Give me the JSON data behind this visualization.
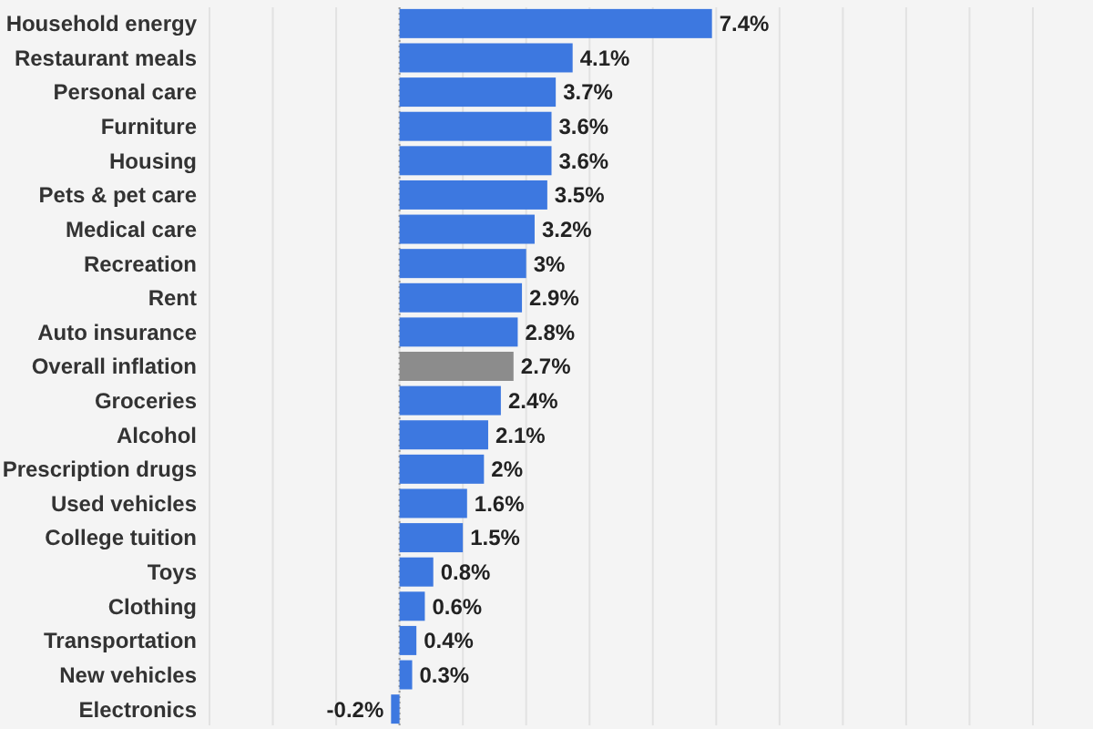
{
  "chart_data": {
    "type": "bar",
    "orientation": "horizontal",
    "categories": [
      "Household energy",
      "Restaurant meals",
      "Personal care",
      "Furniture",
      "Housing",
      "Pets & pet care",
      "Medical care",
      "Recreation",
      "Rent",
      "Auto insurance",
      "Overall inflation",
      "Groceries",
      "Alcohol",
      "Prescription drugs",
      "Used vehicles",
      "College tuition",
      "Toys",
      "Clothing",
      "Transportation",
      "New vehicles",
      "Electronics"
    ],
    "values": [
      7.4,
      4.1,
      3.7,
      3.6,
      3.6,
      3.5,
      3.2,
      3,
      2.9,
      2.8,
      2.7,
      2.4,
      2.1,
      2,
      1.6,
      1.5,
      0.8,
      0.6,
      0.4,
      0.3,
      -0.2
    ],
    "colors": [
      "#3d78e0",
      "#3d78e0",
      "#3d78e0",
      "#3d78e0",
      "#3d78e0",
      "#3d78e0",
      "#3d78e0",
      "#3d78e0",
      "#3d78e0",
      "#3d78e0",
      "#8c8c8c",
      "#3d78e0",
      "#3d78e0",
      "#3d78e0",
      "#3d78e0",
      "#3d78e0",
      "#3d78e0",
      "#3d78e0",
      "#3d78e0",
      "#3d78e0",
      "#3d78e0"
    ],
    "value_labels": [
      "7.4%",
      "4.1%",
      "3.7%",
      "3.6%",
      "3.6%",
      "3.5%",
      "3.2%",
      "3%",
      "2.9%",
      "2.8%",
      "2.7%",
      "2.4%",
      "2.1%",
      "2%",
      "1.6%",
      "1.5%",
      "0.8%",
      "0.6%",
      "0.4%",
      "0.3%",
      "-0.2%"
    ],
    "xlim": [
      -4.5,
      15
    ],
    "xticks": [
      {
        "value": -4.5,
        "label": null
      },
      {
        "value": -3,
        "label": null
      },
      {
        "value": -1.5,
        "label": null
      },
      {
        "value": 0,
        "label": null
      },
      {
        "value": 1.5,
        "label": null
      },
      {
        "value": 3,
        "label": null
      },
      {
        "value": 4.5,
        "label": null
      },
      {
        "value": 6,
        "label": null
      },
      {
        "value": 7.5,
        "label": null
      },
      {
        "value": 9,
        "label": null
      },
      {
        "value": 10.5,
        "label": null
      },
      {
        "value": 12,
        "label": null
      },
      {
        "value": 13.5,
        "label": null
      },
      {
        "value": 15,
        "label": null
      }
    ],
    "ref_lines": [
      {
        "axis": "x",
        "value": 0,
        "color": "#999999",
        "line_style": "dotted"
      }
    ],
    "grid": "x",
    "tick_labels": "y"
  }
}
